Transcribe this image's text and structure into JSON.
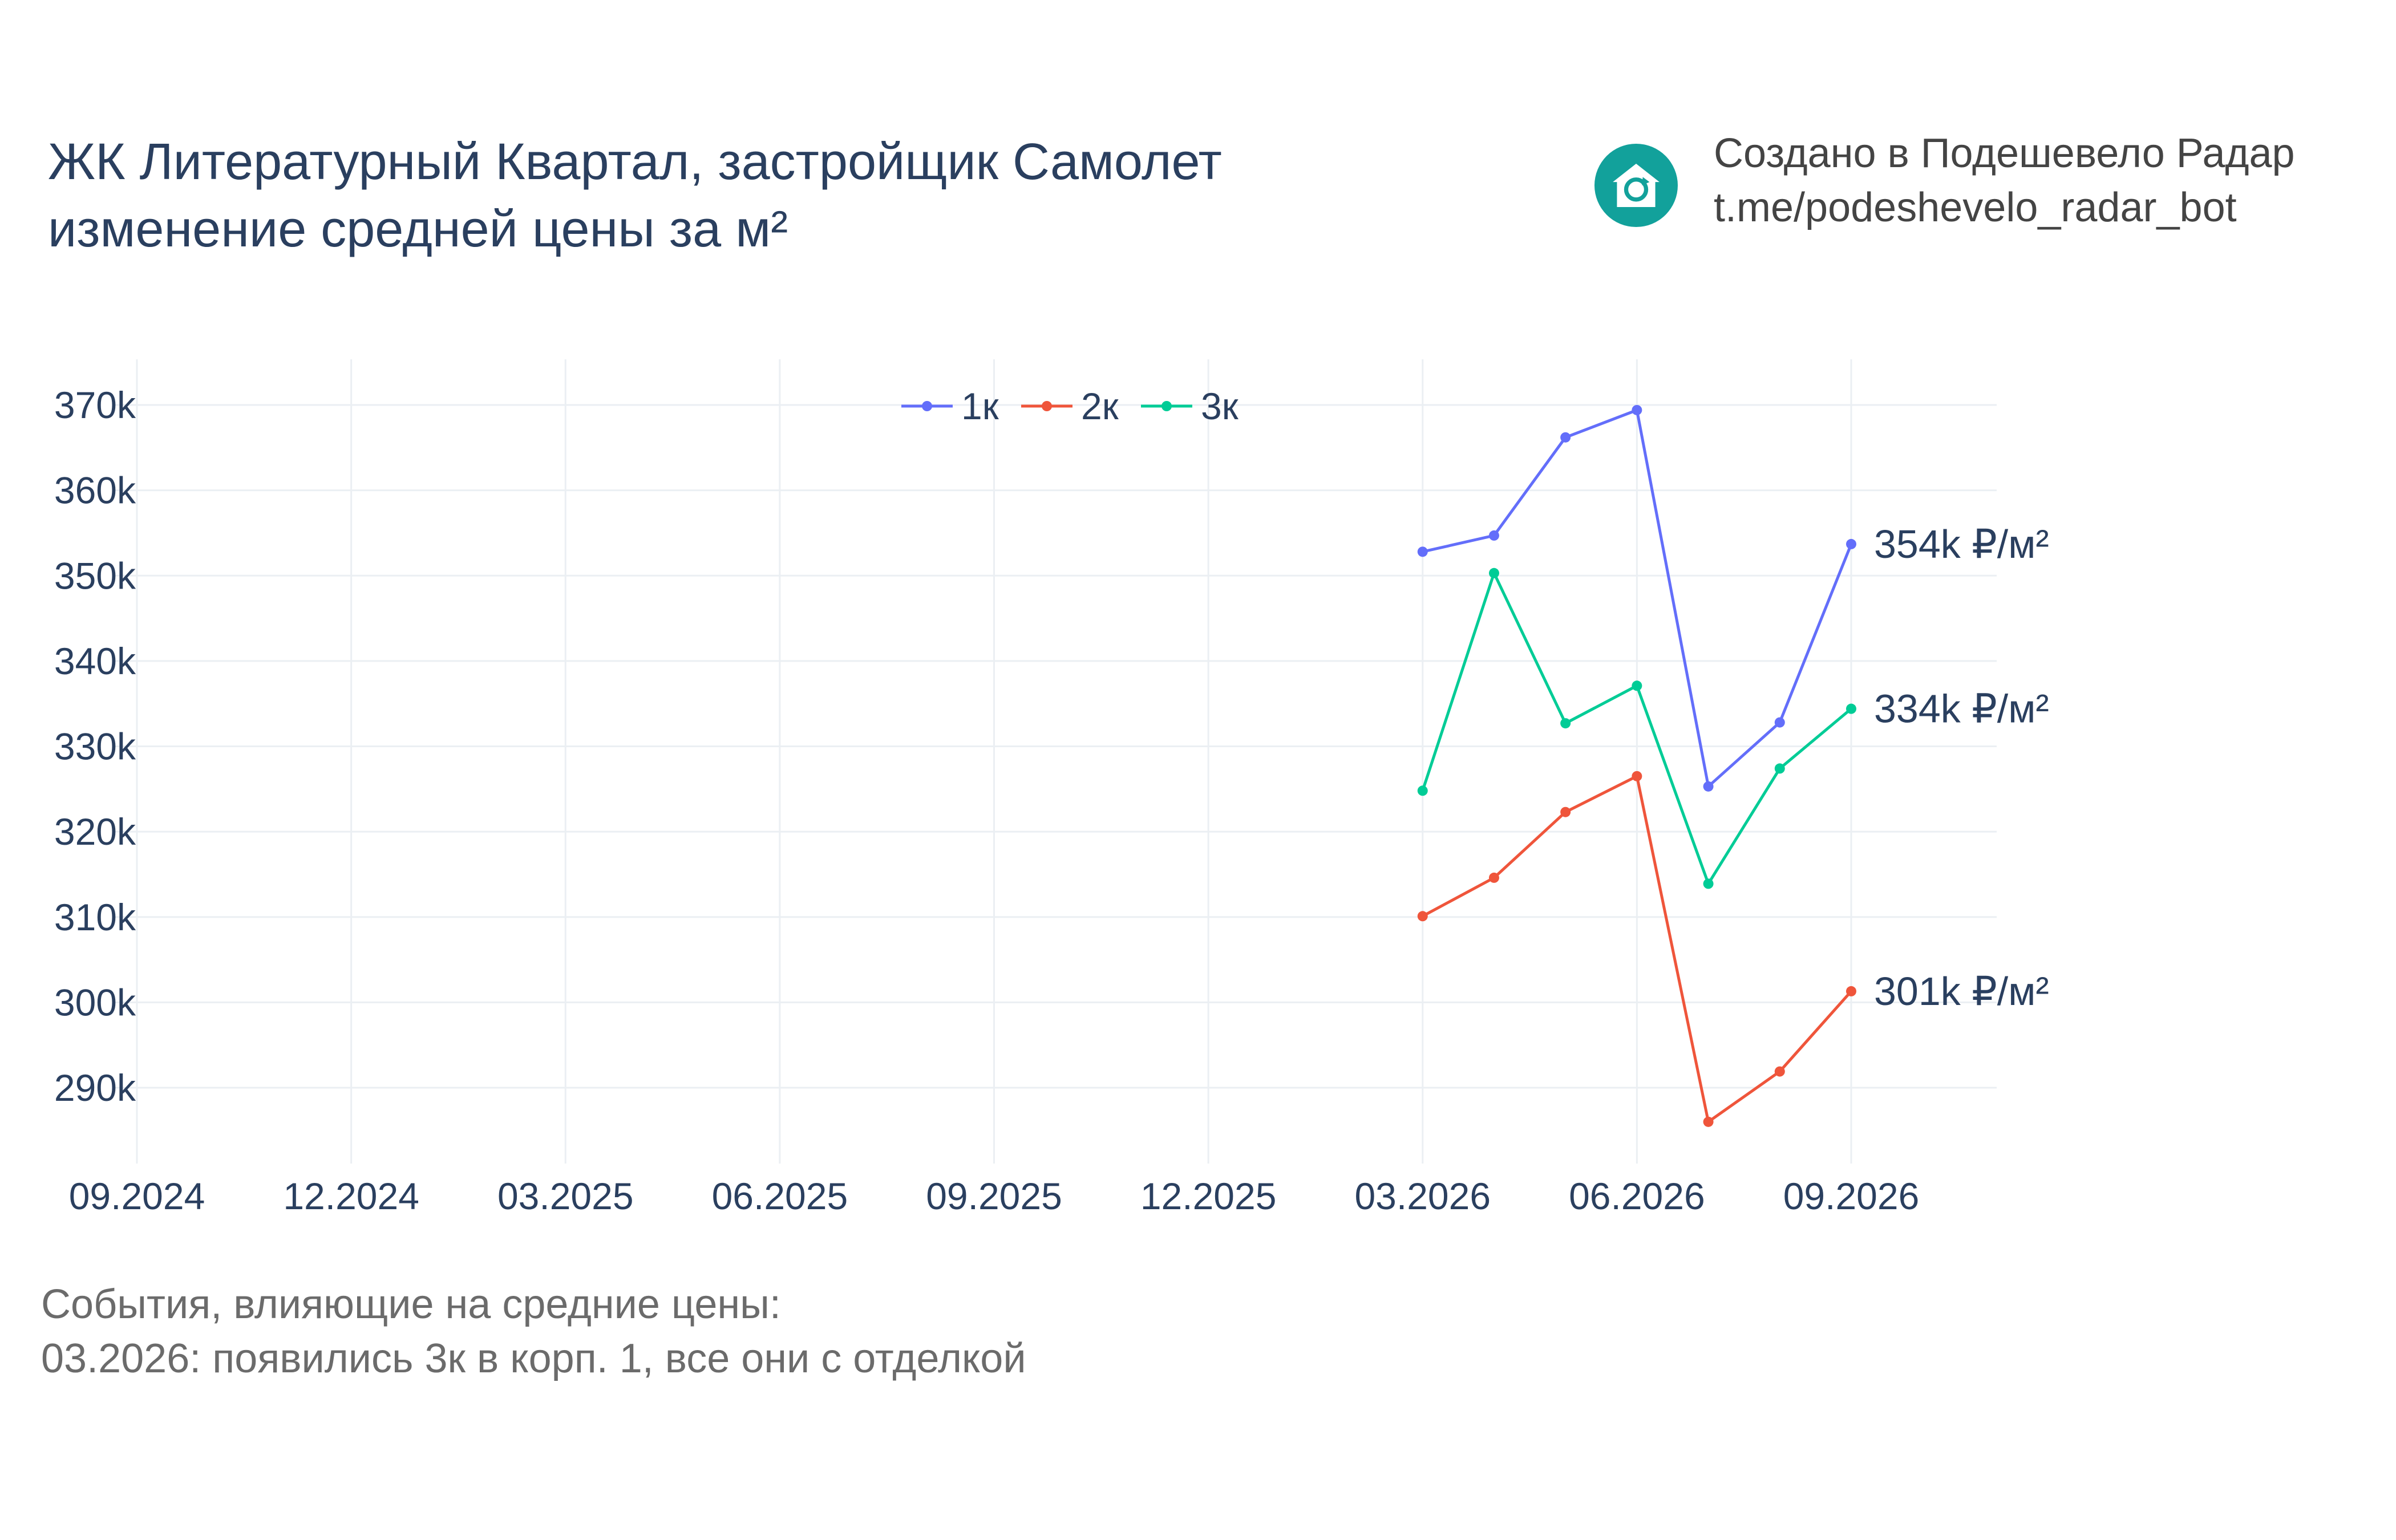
{
  "title": {
    "line1": "ЖК Литературный Квартал, застройщик Самолет",
    "line2": "изменение средней цены за м²"
  },
  "brand": {
    "line1": "Создано в Подешевело Радар",
    "line2": "t.me/podeshevelo_radar_bot",
    "logo_icon": "house-refresh-icon",
    "logo_color": "#12a19b"
  },
  "events": {
    "heading": "События, влияющие на средние цены:",
    "items": [
      "03.2026: появились 3к в корп. 1, все они с отделкой"
    ]
  },
  "chart_data": {
    "type": "line",
    "x_tick_labels": [
      "09.2024",
      "12.2024",
      "03.2025",
      "06.2025",
      "09.2025",
      "12.2025",
      "03.2026",
      "06.2026",
      "09.2026"
    ],
    "y_tick_labels": [
      "290k",
      "300k",
      "310k",
      "320k",
      "330k",
      "340k",
      "350k",
      "360k",
      "370k"
    ],
    "y_ticks": [
      290000,
      300000,
      310000,
      320000,
      330000,
      340000,
      350000,
      360000,
      370000
    ],
    "xlim": [
      "2024-09",
      "2026-11"
    ],
    "ylim": [
      280000,
      375000
    ],
    "grid": true,
    "legend_placement": "top-center",
    "x": [
      "2026-03",
      "2026-04",
      "2026-05",
      "2026-06",
      "2026-07",
      "2026-08",
      "2026-09"
    ],
    "series": [
      {
        "name": "1к",
        "color": "#636efa",
        "values": [
          352800,
          354700,
          366200,
          369400,
          325300,
          332800,
          353700
        ],
        "end_label": "354k ₽/м²"
      },
      {
        "name": "2к",
        "color": "#ef553b",
        "values": [
          310100,
          314600,
          322300,
          326500,
          286000,
          291900,
          301300
        ],
        "end_label": "301k ₽/м²"
      },
      {
        "name": "3к",
        "color": "#00cc96",
        "values": [
          324800,
          350300,
          332700,
          337100,
          313900,
          327400,
          334400
        ],
        "end_label": "334k ₽/м²"
      }
    ]
  }
}
